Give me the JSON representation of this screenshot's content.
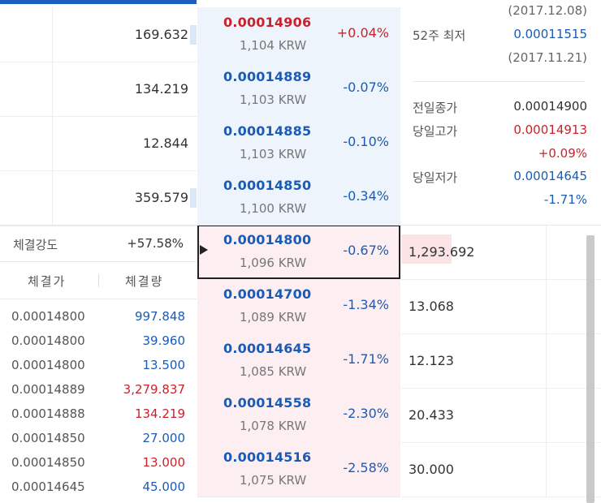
{
  "ask_quantities": [
    "169.632",
    "134.219",
    "12.844",
    "359.579"
  ],
  "prices": [
    {
      "price": "0.00014906",
      "krw": "1,104 KRW",
      "change": "+0.04%",
      "side": "ask",
      "dir": "up"
    },
    {
      "price": "0.00014889",
      "krw": "1,103 KRW",
      "change": "-0.07%",
      "side": "ask",
      "dir": "down"
    },
    {
      "price": "0.00014885",
      "krw": "1,103 KRW",
      "change": "-0.10%",
      "side": "ask",
      "dir": "down"
    },
    {
      "price": "0.00014850",
      "krw": "1,100 KRW",
      "change": "-0.34%",
      "side": "ask",
      "dir": "down"
    },
    {
      "price": "0.00014800",
      "krw": "1,096 KRW",
      "change": "-0.67%",
      "side": "bid",
      "dir": "down",
      "current": true
    },
    {
      "price": "0.00014700",
      "krw": "1,089 KRW",
      "change": "-1.34%",
      "side": "bid",
      "dir": "down"
    },
    {
      "price": "0.00014645",
      "krw": "1,085 KRW",
      "change": "-1.71%",
      "side": "bid",
      "dir": "down"
    },
    {
      "price": "0.00014558",
      "krw": "1,078 KRW",
      "change": "-2.30%",
      "side": "bid",
      "dir": "down"
    },
    {
      "price": "0.00014516",
      "krw": "1,075 KRW",
      "change": "-2.58%",
      "side": "bid",
      "dir": "down"
    }
  ],
  "bid_quantities": [
    "1,293.692",
    "13.068",
    "12.123",
    "20.433",
    "30.000"
  ],
  "info": {
    "high_date": "(2017.12.08)",
    "low52_label": "52주 최저",
    "low52_value": "0.00011515",
    "low52_date": "(2017.11.21)",
    "prev_close_label": "전일종가",
    "prev_close_value": "0.00014900",
    "day_high_label": "당일고가",
    "day_high_value": "0.00014913",
    "day_high_pct": "+0.09%",
    "day_low_label": "당일저가",
    "day_low_value": "0.00014645",
    "day_low_pct": "-1.71%"
  },
  "trades": {
    "strength_label": "체결강도",
    "strength_value": "+57.58%",
    "col_price": "체결가",
    "col_qty": "체결량",
    "rows": [
      {
        "price": "0.00014800",
        "qty": "997.848",
        "color": "blue"
      },
      {
        "price": "0.00014800",
        "qty": "39.960",
        "color": "blue"
      },
      {
        "price": "0.00014800",
        "qty": "13.500",
        "color": "blue"
      },
      {
        "price": "0.00014889",
        "qty": "3,279.837",
        "color": "red"
      },
      {
        "price": "0.00014888",
        "qty": "134.219",
        "color": "red"
      },
      {
        "price": "0.00014850",
        "qty": "27.000",
        "color": "blue"
      },
      {
        "price": "0.00014850",
        "qty": "13.000",
        "color": "red"
      },
      {
        "price": "0.00014645",
        "qty": "45.000",
        "color": "blue"
      }
    ]
  },
  "colors": {
    "up": "#c8232c",
    "down": "#1b5bb5",
    "ask_bg": "#eef4fc",
    "bid_bg": "#fdeff1"
  }
}
